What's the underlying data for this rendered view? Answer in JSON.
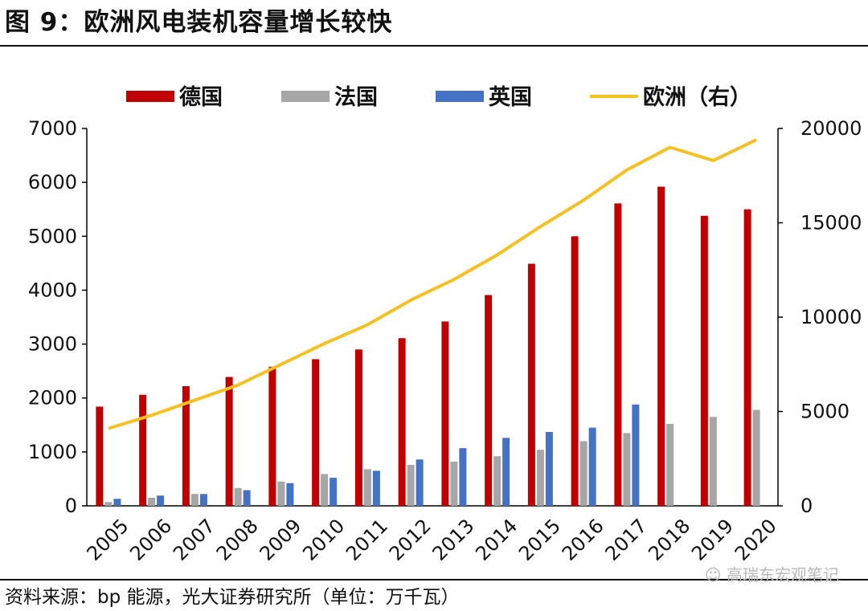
{
  "title": "图 9：欧洲风电装机容量增长较快",
  "source": "资料来源：bp 能源，光大证券研究所（单位：万千瓦）",
  "watermark": "高瑞东宏观笔记",
  "chart_data": {
    "type": "bar",
    "categories": [
      "2005",
      "2006",
      "2007",
      "2008",
      "2009",
      "2010",
      "2011",
      "2012",
      "2013",
      "2014",
      "2015",
      "2016",
      "2017",
      "2018",
      "2019",
      "2020"
    ],
    "series": [
      {
        "name": "德国",
        "type": "bar",
        "axis": "left",
        "color": "#c00000",
        "values": [
          1840,
          2060,
          2220,
          2390,
          2580,
          2720,
          2900,
          3110,
          3420,
          3910,
          4490,
          5000,
          5610,
          5920,
          5380,
          5500
        ]
      },
      {
        "name": "法国",
        "type": "bar",
        "axis": "left",
        "color": "#a6a6a6",
        "values": [
          70,
          150,
          220,
          330,
          450,
          590,
          680,
          760,
          820,
          920,
          1040,
          1200,
          1350,
          1520,
          1650,
          1780
        ]
      },
      {
        "name": "英国",
        "type": "bar",
        "axis": "left",
        "color": "#4472c4",
        "values": [
          130,
          190,
          220,
          290,
          420,
          520,
          650,
          860,
          1070,
          1260,
          1370,
          1450,
          1880,
          null,
          null,
          null
        ]
      },
      {
        "name": "欧洲（右）",
        "type": "line",
        "axis": "right",
        "color": "#f5c022",
        "values": [
          4100,
          4800,
          5600,
          6400,
          7500,
          8600,
          9600,
          10900,
          12000,
          13300,
          14800,
          16200,
          17800,
          19000,
          18300,
          19400
        ]
      }
    ],
    "y_left": {
      "min": 0,
      "max": 7000,
      "ticks": [
        0,
        1000,
        2000,
        3000,
        4000,
        5000,
        6000,
        7000
      ]
    },
    "y_right": {
      "min": 0,
      "max": 20000,
      "ticks": [
        0,
        5000,
        10000,
        15000,
        20000
      ]
    },
    "legend_position": "top",
    "grid": false
  }
}
